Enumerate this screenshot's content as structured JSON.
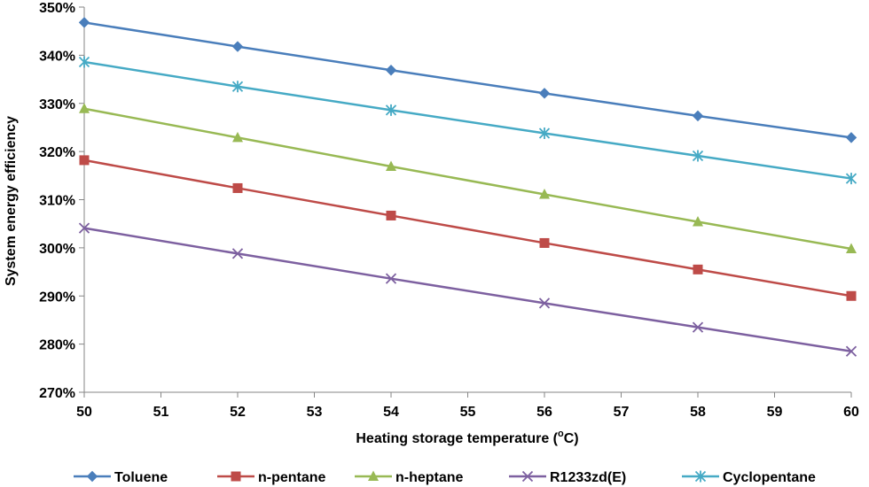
{
  "chart_data": {
    "type": "line",
    "xlabel": "Heating storage temperature (",
    "xlabel_sup": "o",
    "xlabel_end": "C)",
    "ylabel": "System energy efficiency",
    "xlim": [
      50,
      60
    ],
    "ylim": [
      270,
      350
    ],
    "x_ticks": [
      "50",
      "51",
      "52",
      "53",
      "54",
      "55",
      "56",
      "57",
      "58",
      "59",
      "60"
    ],
    "y_ticks": [
      "270%",
      "280%",
      "290%",
      "300%",
      "310%",
      "320%",
      "330%",
      "340%",
      "350%"
    ],
    "x": [
      50,
      52,
      54,
      56,
      58,
      60
    ],
    "grid": false,
    "legend_position": "bottom",
    "series": [
      {
        "name": "Toluene",
        "color": "#4a7ebb",
        "marker": "diamond",
        "values": [
          346.8,
          341.8,
          336.9,
          332.1,
          327.4,
          322.9
        ]
      },
      {
        "name": "n-pentane",
        "color": "#be4b48",
        "marker": "square",
        "values": [
          318.2,
          312.4,
          306.7,
          301.0,
          295.5,
          290.0
        ]
      },
      {
        "name": "n-heptane",
        "color": "#98b954",
        "marker": "triangle",
        "values": [
          328.9,
          322.9,
          316.9,
          311.1,
          305.4,
          299.8
        ]
      },
      {
        "name": "R1233zd(E)",
        "color": "#7d60a0",
        "marker": "x",
        "values": [
          304.1,
          298.8,
          293.6,
          288.5,
          283.5,
          278.5
        ]
      },
      {
        "name": "Cyclopentane",
        "color": "#46aac5",
        "marker": "asterisk",
        "values": [
          338.6,
          333.5,
          328.6,
          323.8,
          319.1,
          314.4
        ]
      }
    ]
  }
}
